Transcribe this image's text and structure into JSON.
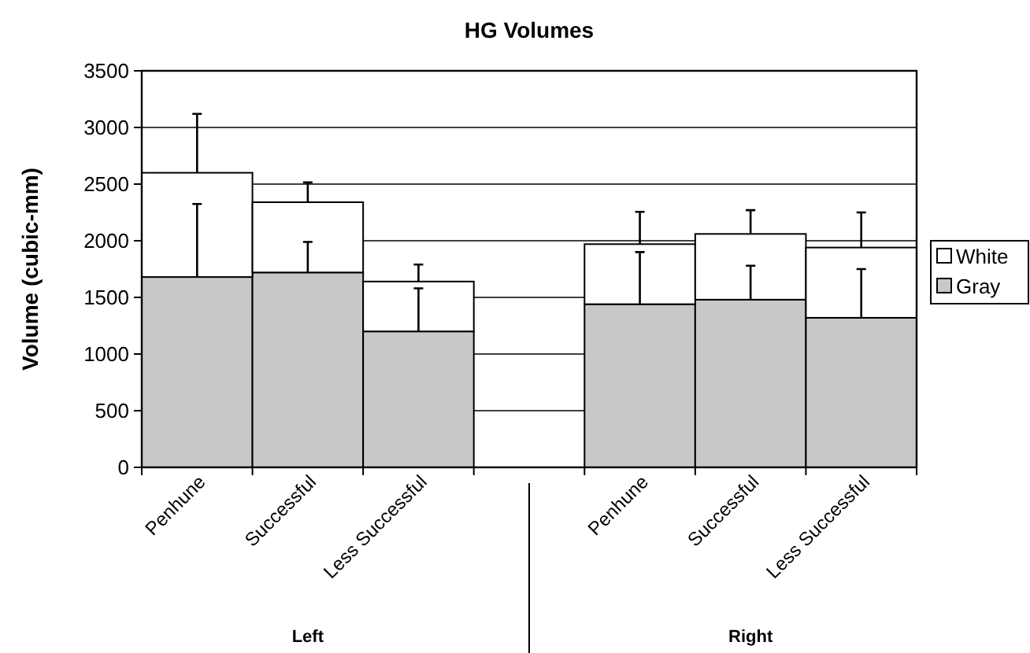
{
  "chart_data": {
    "type": "bar",
    "title": "HG Volumes",
    "ylabel": "Volume (cubic-mm)",
    "stacked": true,
    "categories": [
      "Penhune",
      "Successful",
      "Less Successful",
      null,
      "Penhune",
      "Successful",
      "Less Successful"
    ],
    "series": [
      {
        "name": "Gray",
        "color": "#c8c8c8",
        "values": [
          1680,
          1720,
          1200,
          null,
          1440,
          1480,
          1320
        ],
        "errors": [
          [
            1680,
            2325
          ],
          [
            1720,
            1990
          ],
          [
            1200,
            1580
          ],
          null,
          [
            1440,
            1900
          ],
          [
            1480,
            1780
          ],
          [
            1320,
            1750
          ]
        ]
      },
      {
        "name": "White",
        "color": "#ffffff",
        "values": [
          920,
          620,
          440,
          null,
          530,
          580,
          620
        ],
        "errors": [
          [
            2600,
            3120
          ],
          [
            2340,
            2515
          ],
          [
            1640,
            1790
          ],
          null,
          [
            1970,
            2255
          ],
          [
            2060,
            2270
          ],
          [
            1940,
            2250
          ]
        ]
      }
    ],
    "ylim": [
      0,
      3500
    ],
    "yticks": [
      0,
      500,
      1000,
      1500,
      2000,
      2500,
      3000,
      3500
    ],
    "grid": "y",
    "legend": "right",
    "annotations": [
      "Left",
      "Right"
    ]
  }
}
